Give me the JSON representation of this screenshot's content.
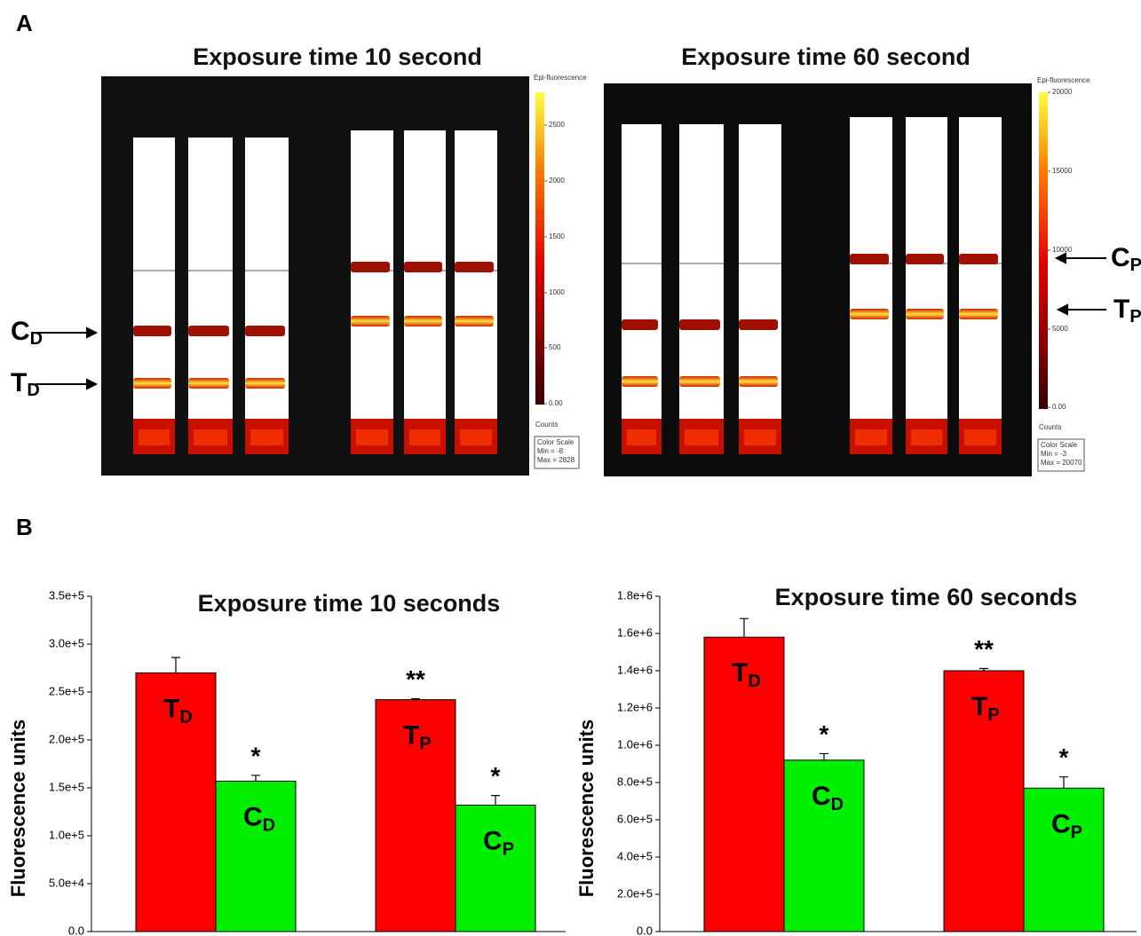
{
  "panel_a": {
    "label": "A",
    "images": [
      {
        "title": "Exposure time 10 second",
        "scale_title": "Epi-fluorescence",
        "scale_ticks": [
          "2500",
          "2000",
          "1500",
          "1000",
          "500",
          "0.00"
        ],
        "counts": "Counts",
        "scale_box": [
          "Color Scale",
          "Min = -8",
          "Max = 2828"
        ]
      },
      {
        "title": "Exposure time 60 second",
        "scale_title": "Epi-fluorescence",
        "scale_ticks": [
          "20000",
          "15000",
          "10000",
          "5000",
          "0.00"
        ],
        "counts": "Counts",
        "scale_box": [
          "Color Scale",
          "Min = -3",
          "Max = 20070"
        ]
      }
    ],
    "arrows": [
      {
        "main": "C",
        "sub": "D"
      },
      {
        "main": "T",
        "sub": "D"
      },
      {
        "main": "C",
        "sub": "P"
      },
      {
        "main": "T",
        "sub": "P"
      }
    ]
  },
  "panel_b": {
    "label": "B"
  },
  "chart_data": [
    {
      "type": "bar",
      "title": "Exposure time 10 seconds",
      "y_label": "Fluorescence units",
      "values": [
        270000,
        157000,
        242000,
        132000
      ],
      "errors": [
        16000,
        6000,
        1000,
        10000
      ],
      "colors": [
        "#ff0000",
        "#00ee00",
        "#ff0000",
        "#00ee00"
      ],
      "bar_labels": [
        {
          "main": "T",
          "sub": "D"
        },
        {
          "main": "C",
          "sub": "D"
        },
        {
          "main": "T",
          "sub": "P"
        },
        {
          "main": "C",
          "sub": "P"
        }
      ],
      "annotations": [
        null,
        "*",
        "**",
        "*"
      ],
      "ylim": [
        0,
        350000
      ],
      "yticks": [
        {
          "value": 0,
          "label": "0.0"
        },
        {
          "value": 50000,
          "label": "5.0e+4"
        },
        {
          "value": 100000,
          "label": "1.0e+5"
        },
        {
          "value": 150000,
          "label": "1.5e+5"
        },
        {
          "value": 200000,
          "label": "2.0e+5"
        },
        {
          "value": 250000,
          "label": "2.5e+5"
        },
        {
          "value": 300000,
          "label": "3.0e+5"
        },
        {
          "value": 350000,
          "label": "3.5e+5"
        }
      ]
    },
    {
      "type": "bar",
      "title": "Exposure time 60 seconds",
      "y_label": "Fluorescence units",
      "values": [
        1580000,
        920000,
        1400000,
        770000
      ],
      "errors": [
        100000,
        35000,
        12000,
        60000
      ],
      "colors": [
        "#ff0000",
        "#00ee00",
        "#ff0000",
        "#00ee00"
      ],
      "bar_labels": [
        {
          "main": "T",
          "sub": "D"
        },
        {
          "main": "C",
          "sub": "D"
        },
        {
          "main": "T",
          "sub": "P"
        },
        {
          "main": "C",
          "sub": "P"
        }
      ],
      "annotations": [
        null,
        "*",
        "**",
        "*"
      ],
      "ylim": [
        0,
        1800000
      ],
      "yticks": [
        {
          "value": 0,
          "label": "0.0"
        },
        {
          "value": 200000,
          "label": "2.0e+5"
        },
        {
          "value": 400000,
          "label": "4.0e+5"
        },
        {
          "value": 600000,
          "label": "6.0e+5"
        },
        {
          "value": 800000,
          "label": "8.0e+5"
        },
        {
          "value": 1000000,
          "label": "1.0e+6"
        },
        {
          "value": 1200000,
          "label": "1.2e+6"
        },
        {
          "value": 1400000,
          "label": "1.4e+6"
        },
        {
          "value": 1600000,
          "label": "1.6e+6"
        },
        {
          "value": 1800000,
          "label": "1.8e+6"
        }
      ]
    }
  ]
}
